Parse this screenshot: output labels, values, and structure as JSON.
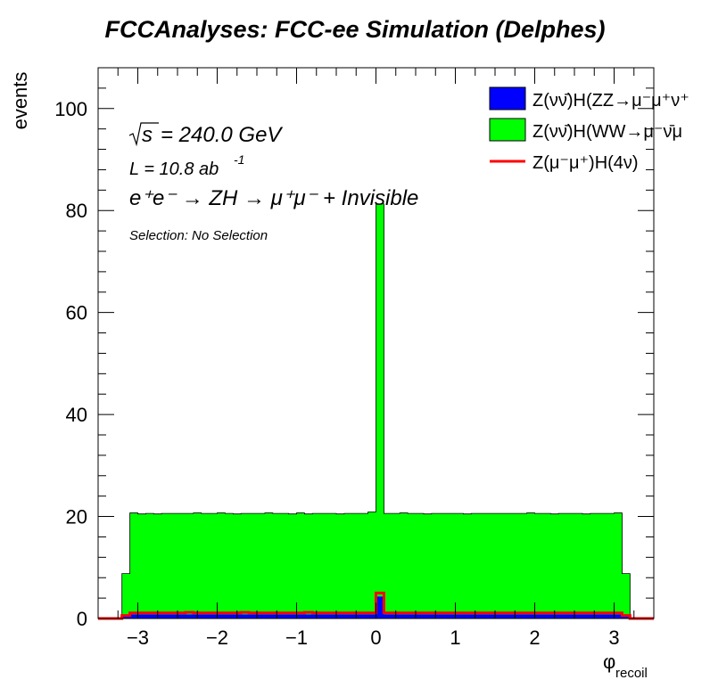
{
  "title": "FCCAnalyses: FCC-ee Simulation (Delphes)",
  "colors": {
    "green": "#00ff00",
    "blue": "#0000ff",
    "red": "#ff0000"
  },
  "annotations": {
    "sqrt_s": "= 240.0 GeV",
    "lumi_prefix": "L = 10.8 ab",
    "lumi_exp": "-1",
    "process": "e⁺e⁻ → ZH → μ⁺μ⁻ + Invisible",
    "selection": "Selection: No Selection"
  },
  "chart_data": {
    "type": "bar",
    "stacked": true,
    "xlabel": "φ",
    "xlabel_sub": "recoil",
    "ylabel": "events",
    "xlim": [
      -3.5,
      3.5
    ],
    "ylim": [
      0,
      108
    ],
    "xticks": [
      -3,
      -2,
      -1,
      0,
      1,
      2,
      3
    ],
    "xtick_labels": [
      "−3",
      "−2",
      "−1",
      "0",
      "1",
      "2",
      "3"
    ],
    "yticks": [
      0,
      20,
      40,
      60,
      80,
      100
    ],
    "ytick_labels": [
      "0",
      "20",
      "40",
      "60",
      "80",
      "100"
    ],
    "bin_edges": [
      -3.2,
      -3.1,
      -3.0,
      -2.9,
      -2.8,
      -2.7,
      -2.6,
      -2.5,
      -2.4,
      -2.3,
      -2.2,
      -2.1,
      -2.0,
      -1.9,
      -1.8,
      -1.7,
      -1.6,
      -1.5,
      -1.4,
      -1.3,
      -1.2,
      -1.1,
      -1.0,
      -0.9,
      -0.8,
      -0.7,
      -0.6,
      -0.5,
      -0.4,
      -0.3,
      -0.2,
      -0.1,
      0.0,
      0.1,
      0.2,
      0.3,
      0.4,
      0.5,
      0.6,
      0.7,
      0.8,
      0.9,
      1.0,
      1.1,
      1.2,
      1.3,
      1.4,
      1.5,
      1.6,
      1.7,
      1.8,
      1.9,
      2.0,
      2.1,
      2.2,
      2.3,
      2.4,
      2.5,
      2.6,
      2.7,
      2.8,
      2.9,
      3.0,
      3.1,
      3.2
    ],
    "legend_position": "top-right",
    "series": [
      {
        "name": "Z(νν̄)H(ZZ→μ⁻μ⁺ν⁺",
        "style": "fill",
        "color": "#0000ff",
        "values": [
          0.5,
          0.8,
          0.8,
          0.8,
          0.8,
          0.8,
          0.8,
          0.8,
          0.8,
          0.8,
          0.8,
          0.8,
          0.8,
          0.8,
          0.8,
          0.8,
          0.8,
          0.8,
          0.8,
          0.8,
          0.8,
          0.8,
          0.8,
          0.8,
          0.8,
          0.8,
          0.8,
          0.8,
          0.8,
          0.8,
          0.8,
          0.8,
          4.3,
          0.8,
          0.8,
          0.8,
          0.8,
          0.8,
          0.8,
          0.8,
          0.8,
          0.8,
          0.8,
          0.8,
          0.8,
          0.8,
          0.8,
          0.8,
          0.8,
          0.8,
          0.8,
          0.8,
          0.8,
          0.8,
          0.8,
          0.8,
          0.8,
          0.8,
          0.8,
          0.8,
          0.8,
          0.8,
          0.8,
          0.5
        ]
      },
      {
        "name": "Z(νν̄)H(WW→μ⁻ν̄μ",
        "style": "fill",
        "color": "#00ff00",
        "values": [
          8.3,
          19.9,
          19.7,
          19.8,
          19.7,
          19.8,
          19.8,
          19.8,
          19.8,
          19.9,
          19.8,
          19.8,
          19.9,
          19.8,
          19.7,
          19.8,
          19.8,
          19.8,
          19.9,
          19.8,
          19.8,
          19.7,
          19.9,
          19.7,
          19.8,
          19.8,
          19.8,
          19.7,
          19.8,
          19.8,
          19.8,
          20.1,
          77.0,
          19.8,
          19.8,
          19.9,
          19.8,
          19.8,
          19.7,
          19.8,
          19.8,
          19.8,
          19.8,
          19.7,
          19.8,
          19.8,
          19.8,
          19.8,
          19.8,
          19.8,
          19.8,
          19.9,
          19.8,
          19.8,
          19.7,
          19.8,
          19.8,
          19.8,
          19.7,
          19.8,
          19.8,
          19.8,
          19.9,
          8.3
        ]
      },
      {
        "name": "Z(μ⁻μ⁺)H(4ν)",
        "style": "line",
        "color": "#ff0000",
        "values": [
          0.6,
          1.1,
          1.1,
          1.1,
          1.1,
          1.1,
          1.1,
          1.1,
          1.2,
          1.1,
          1.1,
          1.1,
          1.1,
          1.1,
          1.1,
          1.2,
          1.1,
          1.1,
          1.1,
          1.1,
          1.1,
          1.1,
          1.1,
          1.2,
          1.1,
          1.1,
          1.1,
          1.1,
          1.1,
          1.1,
          1.1,
          1.1,
          5.0,
          1.1,
          1.1,
          1.1,
          1.1,
          1.1,
          1.1,
          1.1,
          1.1,
          1.1,
          1.1,
          1.1,
          1.1,
          1.1,
          1.1,
          1.1,
          1.1,
          1.1,
          1.1,
          1.1,
          1.1,
          1.1,
          1.1,
          1.1,
          1.1,
          1.1,
          1.1,
          1.1,
          1.1,
          1.1,
          1.1,
          0.6
        ]
      }
    ]
  }
}
